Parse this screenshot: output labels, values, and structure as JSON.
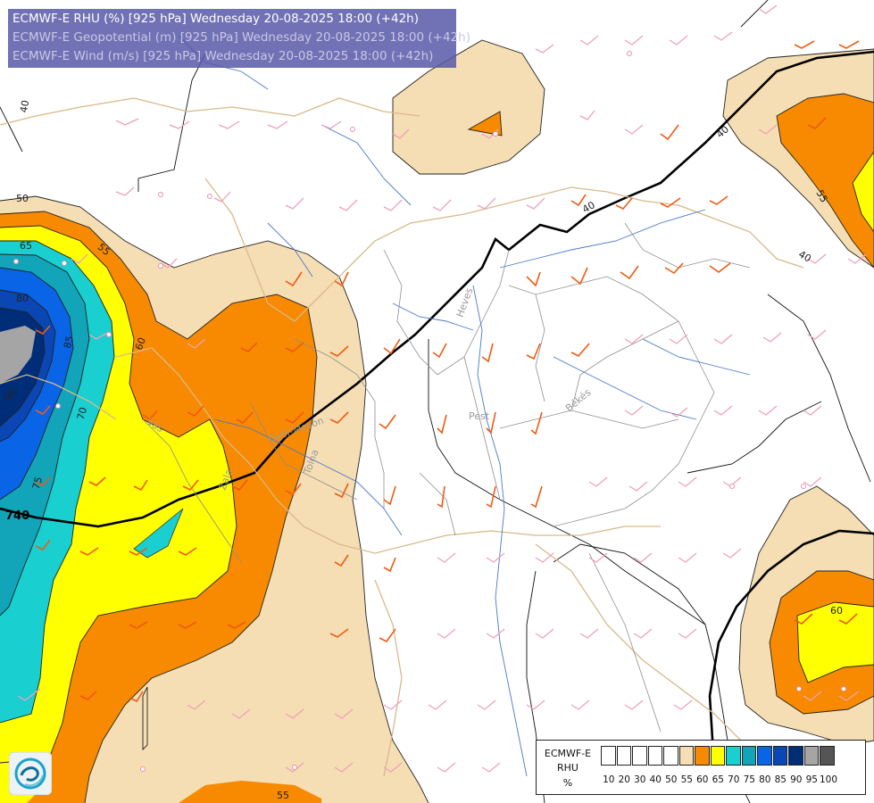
{
  "header": {
    "line1": "ECMWF-E RHU (%) [925 hPa] Wednesday 20-08-2025 18:00 (+42h)",
    "line2": "ECMWF-E Geopotential (m) [925 hPa] Wednesday 20-08-2025 18:00 (+42h)",
    "line3": "ECMWF-E Wind (m/s) [925 hPa] Wednesday 20-08-2025 18:00 (+42h)"
  },
  "legend": {
    "title1": "ECMWF-E",
    "title2": "RHU",
    "unit": "%",
    "levels": [
      "10",
      "20",
      "30",
      "40",
      "50",
      "55",
      "60",
      "65",
      "70",
      "75",
      "80",
      "85",
      "90",
      "95",
      "100"
    ],
    "colors": [
      "#ffffff",
      "#ffffff",
      "#ffffff",
      "#ffffff",
      "#ffffff",
      "#f5deb3",
      "#f78a00",
      "#ffff00",
      "#19cfcf",
      "#12a4b8",
      "#0a64e6",
      "#0a46b4",
      "#002d78",
      "#a5a5a5",
      "#555555"
    ]
  },
  "geopotential_contour": {
    "label": "740"
  },
  "contour_labels": [
    "40",
    "50",
    "55",
    "60",
    "65",
    "70",
    "75",
    "80",
    "85",
    "90",
    "40",
    "40",
    "40",
    "55",
    "60",
    "55"
  ],
  "region_labels": [
    "Heves",
    "Pest",
    "Békés",
    "Győr-Moson",
    "Vas",
    "Zala",
    "Tolna"
  ],
  "logo": {
    "icon": "ecmwf-logo-icon"
  }
}
